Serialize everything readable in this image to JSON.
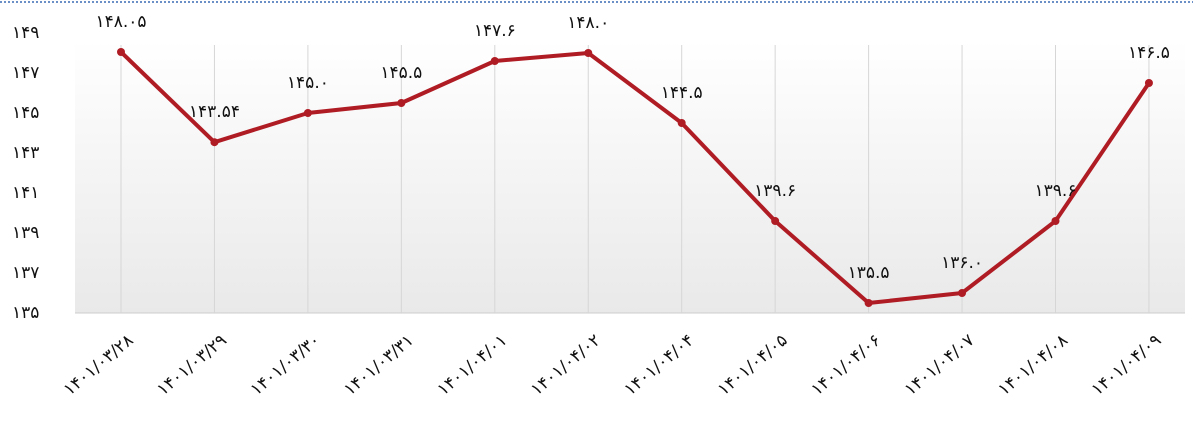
{
  "chart_data": {
    "type": "line",
    "categories": [
      "۱۴۰۱/۰۳/۲۸",
      "۱۴۰۱/۰۳/۲۹",
      "۱۴۰۱/۰۳/۳۰",
      "۱۴۰۱/۰۳/۳۱",
      "۱۴۰۱/۰۴/۰۱",
      "۱۴۰۱/۰۴/۰۲",
      "۱۴۰۱/۰۴/۰۴",
      "۱۴۰۱/۰۴/۰۵",
      "۱۴۰۱/۰۴/۰۶",
      "۱۴۰۱/۰۴/۰۷",
      "۱۴۰۱/۰۴/۰۸",
      "۱۴۰۱/۰۴/۰۹"
    ],
    "values": [
      148.05,
      143.54,
      145.0,
      145.5,
      147.6,
      148.0,
      144.5,
      139.6,
      135.5,
      136.0,
      139.6,
      146.5
    ],
    "value_labels": [
      "۱۴۸.۰۵",
      "۱۴۳.۵۴",
      "۱۴۵.۰",
      "۱۴۵.۵",
      "۱۴۷.۶",
      "۱۴۸.۰",
      "۱۴۴.۵",
      "۱۳۹.۶",
      "۱۳۵.۵",
      "۱۳۶.۰",
      "۱۳۹.۶",
      "۱۴۶.۵"
    ],
    "color": "#b01c24",
    "ylim": [
      135,
      150
    ],
    "yticks": [
      {
        "value": 135,
        "label": "۱۳۵"
      },
      {
        "value": 137,
        "label": "۱۳۷"
      },
      {
        "value": 139,
        "label": "۱۳۹"
      },
      {
        "value": 141,
        "label": "۱۴۱"
      },
      {
        "value": 143,
        "label": "۱۴۳"
      },
      {
        "value": 145,
        "label": "۱۴۵"
      },
      {
        "value": 147,
        "label": "۱۴۷"
      },
      {
        "value": 149,
        "label": "۱۴۹"
      }
    ],
    "grid": true
  }
}
